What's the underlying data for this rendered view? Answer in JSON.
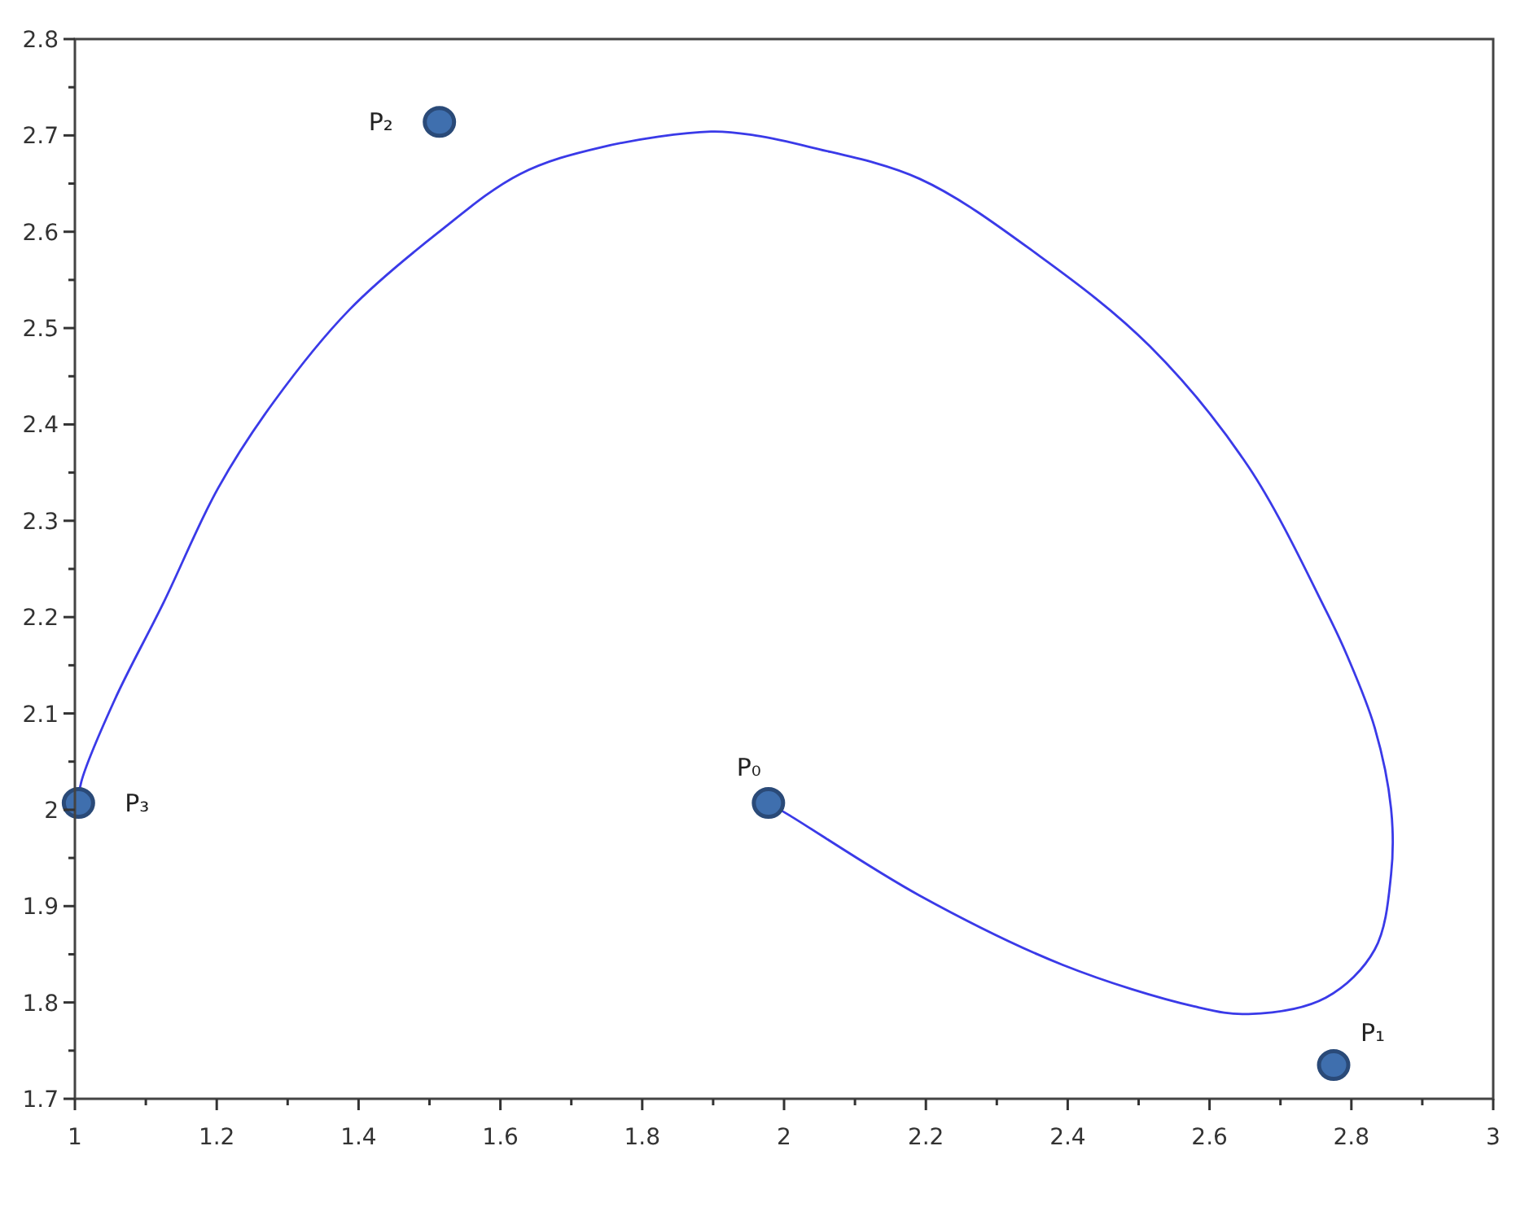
{
  "chart_data": {
    "type": "line",
    "xlim": [
      1,
      3
    ],
    "ylim": [
      1.7,
      2.8
    ],
    "xticks": [
      1,
      {
        "value": 1.1,
        "label": null
      },
      1.2,
      {
        "value": 1.3,
        "label": null
      },
      1.4,
      {
        "value": 1.5,
        "label": null
      },
      1.6,
      {
        "value": 1.7,
        "label": null
      },
      1.8,
      {
        "value": 1.9,
        "label": null
      },
      2,
      {
        "value": 2.1,
        "label": null
      },
      2.2,
      {
        "value": 2.3,
        "label": null
      },
      2.4,
      {
        "value": 2.5,
        "label": null
      },
      2.6,
      {
        "value": 2.7,
        "label": null
      },
      2.8,
      {
        "value": 2.9,
        "label": null
      },
      3
    ],
    "yticks": [
      1.7,
      {
        "value": 1.75,
        "label": null
      },
      1.8,
      {
        "value": 1.85,
        "label": null
      },
      1.9,
      {
        "value": 1.95,
        "label": null
      },
      2,
      {
        "value": 2.05,
        "label": null
      },
      2.1,
      {
        "value": 2.15,
        "label": null
      },
      2.2,
      {
        "value": 2.25,
        "label": null
      },
      2.3,
      {
        "value": 2.35,
        "label": null
      },
      2.4,
      {
        "value": 2.45,
        "label": null
      },
      2.5,
      {
        "value": 2.55,
        "label": null
      },
      2.6,
      {
        "value": 2.65,
        "label": null
      },
      2.7,
      {
        "value": 2.75,
        "label": null
      },
      2.8
    ],
    "grid": false,
    "series": [
      {
        "color": "#3a3ae8",
        "line_style": "solid",
        "marker": "none",
        "x": [
          1.978,
          2.006,
          2.191,
          2.393,
          2.578,
          2.655,
          2.764,
          2.833,
          2.856,
          2.856,
          2.833,
          2.794,
          2.764,
          2.655,
          2.516,
          2.36,
          2.191,
          2.036,
          1.959,
          1.897,
          1.744,
          1.628,
          1.512,
          1.387,
          1.28,
          1.202,
          1.125,
          1.056,
          1.009,
          1.005
        ],
        "values": [
          2.007,
          1.995,
          1.911,
          1.839,
          1.796,
          1.788,
          1.805,
          1.855,
          1.933,
          2.001,
          2.085,
          2.16,
          2.207,
          2.356,
          2.481,
          2.575,
          2.655,
          2.688,
          2.7,
          2.704,
          2.688,
          2.66,
          2.599,
          2.519,
          2.423,
          2.334,
          2.215,
          2.114,
          2.029,
          2.007
        ]
      },
      {
        "type": "scatter",
        "color": "#3f6fae",
        "marker": "circle",
        "x": [
          1.978,
          2.775,
          1.514,
          1.005
        ],
        "values": [
          2.007,
          1.735,
          2.714,
          2.007
        ]
      }
    ],
    "annotations": [
      {
        "text": "P₀",
        "x": 1.978,
        "y": 2.007
      },
      {
        "text": "P₁",
        "x": 2.775,
        "y": 1.735
      },
      {
        "text": "P₂",
        "x": 1.514,
        "y": 2.714
      },
      {
        "text": "P₃",
        "x": 1.005,
        "y": 2.007
      }
    ]
  }
}
